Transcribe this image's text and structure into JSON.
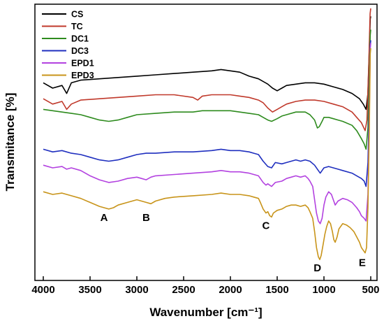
{
  "chart_data": {
    "type": "line",
    "title": "",
    "xlabel": "Wavenumber [cm⁻¹]",
    "ylabel": "Transmitance [%]",
    "xlim": [
      4000,
      500
    ],
    "x_reversed": true,
    "x_ticks": [
      4000,
      3500,
      3000,
      2500,
      2000,
      1500,
      1000,
      500
    ],
    "y_ticks_shown": false,
    "ylim": [
      0,
      1
    ],
    "grid": false,
    "legend_position": "top-left",
    "series": [
      {
        "name": "CS",
        "color": "#000000",
        "points": [
          [
            4000,
            0.72
          ],
          [
            3900,
            0.7
          ],
          [
            3800,
            0.71
          ],
          [
            3750,
            0.68
          ],
          [
            3700,
            0.72
          ],
          [
            3600,
            0.73
          ],
          [
            3400,
            0.735
          ],
          [
            3200,
            0.74
          ],
          [
            3000,
            0.745
          ],
          [
            2800,
            0.75
          ],
          [
            2600,
            0.755
          ],
          [
            2400,
            0.76
          ],
          [
            2200,
            0.765
          ],
          [
            2100,
            0.77
          ],
          [
            2000,
            0.765
          ],
          [
            1900,
            0.76
          ],
          [
            1800,
            0.745
          ],
          [
            1700,
            0.735
          ],
          [
            1600,
            0.715
          ],
          [
            1550,
            0.7
          ],
          [
            1500,
            0.69
          ],
          [
            1450,
            0.7
          ],
          [
            1400,
            0.71
          ],
          [
            1300,
            0.715
          ],
          [
            1200,
            0.72
          ],
          [
            1100,
            0.72
          ],
          [
            1000,
            0.715
          ],
          [
            900,
            0.705
          ],
          [
            800,
            0.695
          ],
          [
            700,
            0.68
          ],
          [
            620,
            0.66
          ],
          [
            580,
            0.64
          ],
          [
            550,
            0.62
          ],
          [
            530,
            0.68
          ],
          [
            515,
            0.85
          ],
          [
            505,
            0.96
          ],
          [
            500,
            0.97
          ]
        ]
      },
      {
        "name": "TC",
        "color": "#c0392b",
        "points": [
          [
            4000,
            0.66
          ],
          [
            3900,
            0.64
          ],
          [
            3800,
            0.65
          ],
          [
            3750,
            0.62
          ],
          [
            3700,
            0.64
          ],
          [
            3600,
            0.655
          ],
          [
            3400,
            0.66
          ],
          [
            3200,
            0.665
          ],
          [
            3000,
            0.67
          ],
          [
            2800,
            0.675
          ],
          [
            2600,
            0.675
          ],
          [
            2400,
            0.665
          ],
          [
            2350,
            0.655
          ],
          [
            2300,
            0.67
          ],
          [
            2200,
            0.675
          ],
          [
            2000,
            0.675
          ],
          [
            1900,
            0.67
          ],
          [
            1800,
            0.665
          ],
          [
            1700,
            0.655
          ],
          [
            1650,
            0.645
          ],
          [
            1600,
            0.625
          ],
          [
            1550,
            0.61
          ],
          [
            1500,
            0.62
          ],
          [
            1450,
            0.63
          ],
          [
            1400,
            0.64
          ],
          [
            1300,
            0.65
          ],
          [
            1200,
            0.655
          ],
          [
            1100,
            0.655
          ],
          [
            1000,
            0.65
          ],
          [
            900,
            0.64
          ],
          [
            800,
            0.63
          ],
          [
            700,
            0.61
          ],
          [
            650,
            0.59
          ],
          [
            600,
            0.57
          ],
          [
            560,
            0.54
          ],
          [
            540,
            0.58
          ],
          [
            520,
            0.8
          ],
          [
            507,
            0.98
          ],
          [
            500,
            1.0
          ]
        ]
      },
      {
        "name": "DC1",
        "color": "#2e8b1e",
        "points": [
          [
            4000,
            0.62
          ],
          [
            3900,
            0.615
          ],
          [
            3800,
            0.61
          ],
          [
            3700,
            0.605
          ],
          [
            3600,
            0.6
          ],
          [
            3500,
            0.59
          ],
          [
            3400,
            0.58
          ],
          [
            3300,
            0.575
          ],
          [
            3200,
            0.58
          ],
          [
            3100,
            0.59
          ],
          [
            3000,
            0.6
          ],
          [
            2800,
            0.605
          ],
          [
            2600,
            0.61
          ],
          [
            2400,
            0.61
          ],
          [
            2300,
            0.615
          ],
          [
            2200,
            0.615
          ],
          [
            2000,
            0.615
          ],
          [
            1900,
            0.61
          ],
          [
            1800,
            0.605
          ],
          [
            1700,
            0.6
          ],
          [
            1650,
            0.59
          ],
          [
            1600,
            0.58
          ],
          [
            1560,
            0.575
          ],
          [
            1500,
            0.585
          ],
          [
            1450,
            0.595
          ],
          [
            1400,
            0.6
          ],
          [
            1300,
            0.61
          ],
          [
            1200,
            0.61
          ],
          [
            1150,
            0.6
          ],
          [
            1100,
            0.58
          ],
          [
            1070,
            0.55
          ],
          [
            1050,
            0.555
          ],
          [
            1020,
            0.575
          ],
          [
            1000,
            0.59
          ],
          [
            950,
            0.59
          ],
          [
            900,
            0.585
          ],
          [
            850,
            0.58
          ],
          [
            800,
            0.575
          ],
          [
            700,
            0.56
          ],
          [
            650,
            0.54
          ],
          [
            600,
            0.51
          ],
          [
            570,
            0.49
          ],
          [
            550,
            0.47
          ],
          [
            530,
            0.55
          ],
          [
            515,
            0.75
          ],
          [
            505,
            0.9
          ],
          [
            500,
            0.92
          ]
        ]
      },
      {
        "name": "DC3",
        "color": "#1f2fbf",
        "points": [
          [
            4000,
            0.47
          ],
          [
            3900,
            0.46
          ],
          [
            3800,
            0.465
          ],
          [
            3700,
            0.455
          ],
          [
            3600,
            0.45
          ],
          [
            3500,
            0.44
          ],
          [
            3400,
            0.43
          ],
          [
            3300,
            0.425
          ],
          [
            3200,
            0.43
          ],
          [
            3100,
            0.44
          ],
          [
            3000,
            0.45
          ],
          [
            2900,
            0.455
          ],
          [
            2800,
            0.455
          ],
          [
            2600,
            0.46
          ],
          [
            2400,
            0.46
          ],
          [
            2200,
            0.465
          ],
          [
            2100,
            0.47
          ],
          [
            2000,
            0.465
          ],
          [
            1900,
            0.465
          ],
          [
            1800,
            0.46
          ],
          [
            1750,
            0.455
          ],
          [
            1700,
            0.45
          ],
          [
            1650,
            0.425
          ],
          [
            1600,
            0.405
          ],
          [
            1560,
            0.4
          ],
          [
            1520,
            0.42
          ],
          [
            1450,
            0.415
          ],
          [
            1400,
            0.42
          ],
          [
            1300,
            0.43
          ],
          [
            1250,
            0.425
          ],
          [
            1200,
            0.43
          ],
          [
            1150,
            0.425
          ],
          [
            1100,
            0.41
          ],
          [
            1070,
            0.395
          ],
          [
            1040,
            0.38
          ],
          [
            1020,
            0.39
          ],
          [
            1000,
            0.4
          ],
          [
            950,
            0.405
          ],
          [
            900,
            0.4
          ],
          [
            850,
            0.395
          ],
          [
            800,
            0.39
          ],
          [
            700,
            0.38
          ],
          [
            650,
            0.37
          ],
          [
            600,
            0.36
          ],
          [
            570,
            0.35
          ],
          [
            550,
            0.33
          ],
          [
            530,
            0.42
          ],
          [
            515,
            0.65
          ],
          [
            505,
            0.86
          ],
          [
            500,
            0.88
          ]
        ]
      },
      {
        "name": "EPD1",
        "color": "#b342e0",
        "points": [
          [
            4000,
            0.41
          ],
          [
            3900,
            0.4
          ],
          [
            3800,
            0.405
          ],
          [
            3750,
            0.395
          ],
          [
            3700,
            0.4
          ],
          [
            3600,
            0.39
          ],
          [
            3500,
            0.37
          ],
          [
            3400,
            0.355
          ],
          [
            3300,
            0.345
          ],
          [
            3200,
            0.35
          ],
          [
            3100,
            0.36
          ],
          [
            3000,
            0.365
          ],
          [
            2950,
            0.36
          ],
          [
            2900,
            0.355
          ],
          [
            2850,
            0.365
          ],
          [
            2800,
            0.37
          ],
          [
            2600,
            0.375
          ],
          [
            2400,
            0.38
          ],
          [
            2200,
            0.385
          ],
          [
            2100,
            0.39
          ],
          [
            2000,
            0.385
          ],
          [
            1900,
            0.385
          ],
          [
            1800,
            0.38
          ],
          [
            1750,
            0.375
          ],
          [
            1700,
            0.37
          ],
          [
            1650,
            0.345
          ],
          [
            1620,
            0.335
          ],
          [
            1600,
            0.34
          ],
          [
            1560,
            0.33
          ],
          [
            1520,
            0.345
          ],
          [
            1450,
            0.35
          ],
          [
            1400,
            0.36
          ],
          [
            1350,
            0.365
          ],
          [
            1300,
            0.37
          ],
          [
            1250,
            0.365
          ],
          [
            1200,
            0.37
          ],
          [
            1170,
            0.36
          ],
          [
            1150,
            0.35
          ],
          [
            1120,
            0.33
          ],
          [
            1100,
            0.28
          ],
          [
            1080,
            0.23
          ],
          [
            1060,
            0.2
          ],
          [
            1040,
            0.19
          ],
          [
            1020,
            0.21
          ],
          [
            1000,
            0.26
          ],
          [
            980,
            0.29
          ],
          [
            950,
            0.31
          ],
          [
            920,
            0.3
          ],
          [
            900,
            0.28
          ],
          [
            880,
            0.26
          ],
          [
            850,
            0.275
          ],
          [
            800,
            0.285
          ],
          [
            750,
            0.28
          ],
          [
            700,
            0.27
          ],
          [
            650,
            0.25
          ],
          [
            620,
            0.235
          ],
          [
            600,
            0.22
          ],
          [
            570,
            0.21
          ],
          [
            550,
            0.2
          ],
          [
            530,
            0.3
          ],
          [
            515,
            0.6
          ],
          [
            505,
            0.85
          ],
          [
            500,
            0.87
          ]
        ]
      },
      {
        "name": "EPD3",
        "color": "#c8941a",
        "points": [
          [
            4000,
            0.31
          ],
          [
            3900,
            0.3
          ],
          [
            3800,
            0.305
          ],
          [
            3700,
            0.295
          ],
          [
            3600,
            0.285
          ],
          [
            3500,
            0.27
          ],
          [
            3400,
            0.255
          ],
          [
            3350,
            0.25
          ],
          [
            3300,
            0.245
          ],
          [
            3250,
            0.25
          ],
          [
            3200,
            0.26
          ],
          [
            3100,
            0.27
          ],
          [
            3000,
            0.28
          ],
          [
            2950,
            0.275
          ],
          [
            2900,
            0.27
          ],
          [
            2850,
            0.265
          ],
          [
            2800,
            0.275
          ],
          [
            2700,
            0.285
          ],
          [
            2600,
            0.29
          ],
          [
            2400,
            0.295
          ],
          [
            2200,
            0.3
          ],
          [
            2100,
            0.305
          ],
          [
            2000,
            0.3
          ],
          [
            1900,
            0.3
          ],
          [
            1800,
            0.295
          ],
          [
            1750,
            0.29
          ],
          [
            1700,
            0.285
          ],
          [
            1680,
            0.27
          ],
          [
            1650,
            0.245
          ],
          [
            1620,
            0.23
          ],
          [
            1600,
            0.235
          ],
          [
            1580,
            0.22
          ],
          [
            1560,
            0.215
          ],
          [
            1540,
            0.23
          ],
          [
            1500,
            0.24
          ],
          [
            1450,
            0.245
          ],
          [
            1400,
            0.255
          ],
          [
            1350,
            0.26
          ],
          [
            1300,
            0.26
          ],
          [
            1250,
            0.255
          ],
          [
            1200,
            0.26
          ],
          [
            1170,
            0.25
          ],
          [
            1150,
            0.235
          ],
          [
            1120,
            0.21
          ],
          [
            1100,
            0.16
          ],
          [
            1080,
            0.1
          ],
          [
            1060,
            0.065
          ],
          [
            1045,
            0.055
          ],
          [
            1030,
            0.07
          ],
          [
            1010,
            0.11
          ],
          [
            990,
            0.15
          ],
          [
            970,
            0.18
          ],
          [
            950,
            0.2
          ],
          [
            930,
            0.19
          ],
          [
            910,
            0.16
          ],
          [
            895,
            0.13
          ],
          [
            880,
            0.12
          ],
          [
            860,
            0.14
          ],
          [
            840,
            0.17
          ],
          [
            800,
            0.19
          ],
          [
            760,
            0.185
          ],
          [
            720,
            0.175
          ],
          [
            680,
            0.16
          ],
          [
            650,
            0.14
          ],
          [
            620,
            0.12
          ],
          [
            600,
            0.1
          ],
          [
            580,
            0.09
          ],
          [
            560,
            0.08
          ],
          [
            545,
            0.1
          ],
          [
            530,
            0.25
          ],
          [
            515,
            0.55
          ],
          [
            505,
            0.83
          ],
          [
            500,
            0.85
          ]
        ]
      }
    ],
    "annotations": [
      {
        "text": "A",
        "x": 3350,
        "y": 0.2
      },
      {
        "text": "B",
        "x": 2900,
        "y": 0.2
      },
      {
        "text": "C",
        "x": 1620,
        "y": 0.17
      },
      {
        "text": "D",
        "x": 1070,
        "y": 0.01
      },
      {
        "text": "E",
        "x": 590,
        "y": 0.03
      }
    ]
  }
}
